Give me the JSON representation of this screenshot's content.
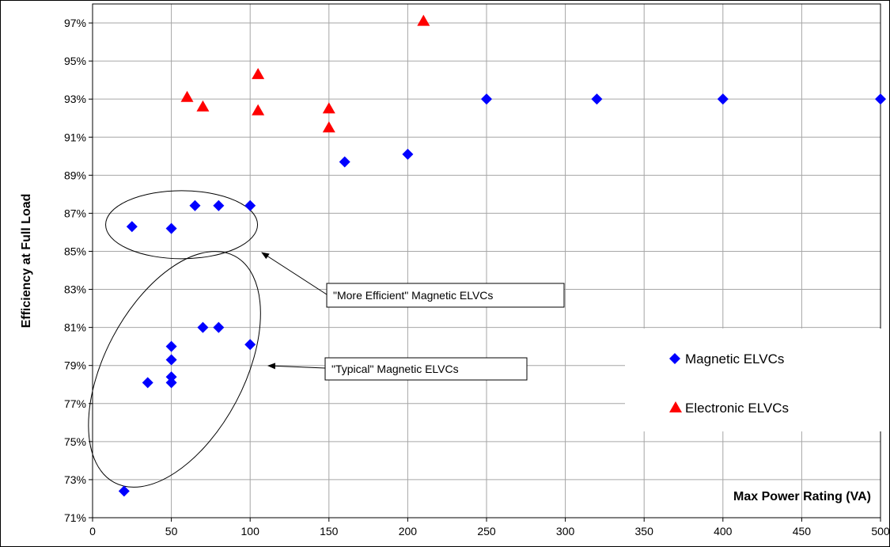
{
  "chart_data": {
    "type": "scatter",
    "title": "",
    "xlabel": "Max Power Rating (VA)",
    "ylabel": "Efficiency at Full Load",
    "xlim": [
      0,
      500
    ],
    "ylim": [
      71,
      98
    ],
    "x_ticks": [
      0,
      50,
      100,
      150,
      200,
      250,
      300,
      350,
      400,
      450,
      500
    ],
    "y_ticks": [
      71,
      73,
      75,
      77,
      79,
      81,
      83,
      85,
      87,
      89,
      91,
      93,
      95,
      97
    ],
    "y_tick_labels": [
      "71%",
      "73%",
      "75%",
      "77%",
      "79%",
      "81%",
      "83%",
      "85%",
      "87%",
      "89%",
      "91%",
      "93%",
      "95%",
      "97%"
    ],
    "grid": true,
    "legend_position": "right",
    "series": [
      {
        "name": "Magnetic ELVCs",
        "marker": "diamond",
        "color": "#0000ff",
        "x": [
          20,
          35,
          50,
          50,
          50,
          50,
          70,
          80,
          100,
          25,
          50,
          65,
          80,
          100,
          160,
          200,
          250,
          320,
          400,
          500
        ],
        "y": [
          72.4,
          78.1,
          78.1,
          78.4,
          79.3,
          80.0,
          81.0,
          81.0,
          80.1,
          86.3,
          86.2,
          87.4,
          87.4,
          87.4,
          89.7,
          90.1,
          93.0,
          93.0,
          93.0,
          93.0
        ]
      },
      {
        "name": "Electronic ELVCs",
        "marker": "triangle",
        "color": "#ff0000",
        "x": [
          60,
          70,
          105,
          105,
          150,
          150,
          210
        ],
        "y": [
          93.1,
          92.6,
          94.3,
          92.4,
          92.5,
          91.5,
          97.1
        ]
      }
    ],
    "annotations": [
      {
        "text": "\"More Efficient\" Magnetic ELVCs"
      },
      {
        "text": "\"Typical\" Magnetic ELVCs"
      }
    ]
  }
}
